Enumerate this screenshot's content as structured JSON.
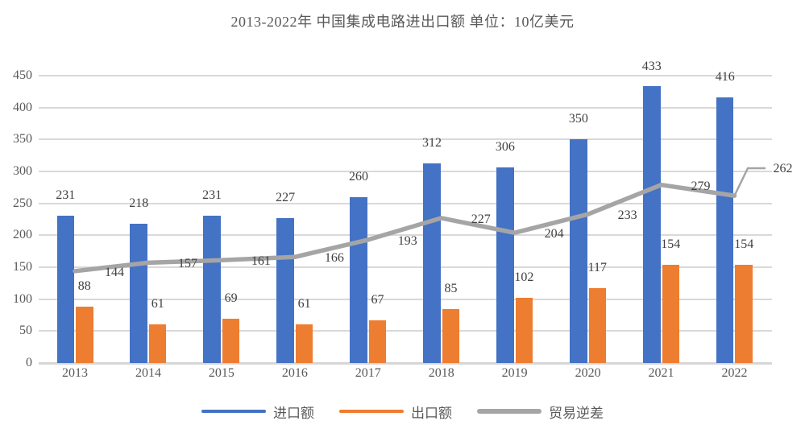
{
  "chart_data": {
    "type": "combo",
    "title": "2013-2022年 中国集成电路进出口额 单位：10亿美元",
    "categories": [
      "2013",
      "2014",
      "2015",
      "2016",
      "2017",
      "2018",
      "2019",
      "2020",
      "2021",
      "2022"
    ],
    "series": [
      {
        "key": "imports",
        "name": "进口额",
        "chart_type": "bar",
        "color": "#4472C4",
        "values": [
          231,
          218,
          231,
          227,
          260,
          312,
          306,
          350,
          433,
          416
        ]
      },
      {
        "key": "exports",
        "name": "出口额",
        "chart_type": "bar",
        "color": "#ED7D31",
        "values": [
          88,
          61,
          69,
          61,
          67,
          85,
          102,
          117,
          154,
          154
        ]
      },
      {
        "key": "deficit",
        "name": "贸易逆差",
        "chart_type": "line",
        "color": "#A5A5A5",
        "values": [
          144,
          157,
          161,
          166,
          193,
          227,
          204,
          233,
          279,
          262
        ]
      }
    ],
    "ylim": [
      0,
      450
    ],
    "yticks": [
      0,
      50,
      100,
      150,
      200,
      250,
      300,
      350,
      400,
      450
    ],
    "grid": true,
    "legend_position": "bottom",
    "xlabel": "",
    "ylabel": ""
  },
  "colors": {
    "gridline": "#D9D9D9",
    "axis_line": "#D6D6D6",
    "axis_text": "#595959",
    "data_label_text": "#404040",
    "background": "#FFFFFF"
  }
}
